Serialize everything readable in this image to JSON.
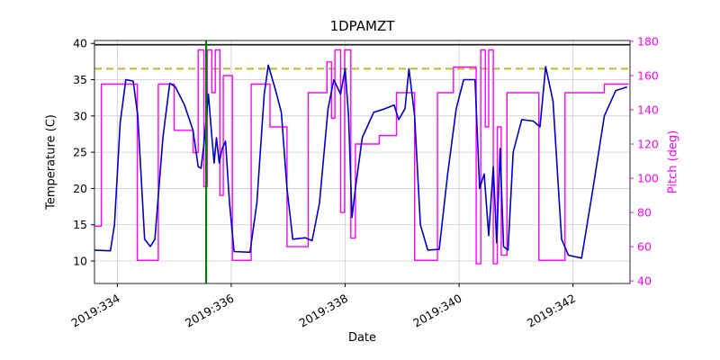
{
  "figure": {
    "title": "1DPAMZT",
    "xlabel": "Date",
    "ylabel_left": "Temperature (C)",
    "ylabel_right": "Pitch (deg)"
  },
  "chart_data": {
    "type": "line",
    "title": "1DPAMZT",
    "xlabel": "Date",
    "grid": true,
    "legend_position": "none",
    "xlim": [
      333.6,
      343.0
    ],
    "x_ticks": [
      {
        "value": 334,
        "label": "2019:334"
      },
      {
        "value": 336,
        "label": "2019:336"
      },
      {
        "value": 338,
        "label": "2019:338"
      },
      {
        "value": 340,
        "label": "2019:340"
      },
      {
        "value": 342,
        "label": "2019:342"
      }
    ],
    "axes": {
      "left": {
        "label": "Temperature (C)",
        "lim": [
          6.9,
          40.4
        ],
        "ticks": [
          10,
          15,
          20,
          25,
          30,
          35,
          40
        ],
        "color": "#000000"
      },
      "right": {
        "label": "Pitch (deg)",
        "lim": [
          38.5,
          180.5
        ],
        "ticks": [
          40,
          60,
          80,
          100,
          120,
          140,
          160,
          180
        ],
        "color": "#ff00ff"
      }
    },
    "series": [
      {
        "name": "temperature",
        "axis": "left",
        "color": "#0000cc",
        "width": 1.6,
        "x": [
          333.6,
          333.88,
          333.95,
          334.05,
          334.15,
          334.28,
          334.36,
          334.48,
          334.58,
          334.66,
          334.8,
          334.92,
          335.02,
          335.18,
          335.33,
          335.42,
          335.47,
          335.52,
          335.6,
          335.65,
          335.7,
          335.74,
          335.79,
          335.84,
          335.9,
          335.97,
          336.05,
          336.33,
          336.45,
          336.58,
          336.65,
          336.78,
          336.88,
          336.98,
          337.08,
          337.3,
          337.42,
          337.55,
          337.7,
          337.8,
          337.92,
          338.0,
          338.06,
          338.12,
          338.18,
          338.3,
          338.5,
          338.7,
          338.86,
          338.94,
          339.05,
          339.12,
          339.22,
          339.32,
          339.45,
          339.65,
          339.8,
          339.95,
          340.08,
          340.28,
          340.36,
          340.44,
          340.52,
          340.6,
          340.66,
          340.72,
          340.78,
          340.86,
          340.95,
          341.1,
          341.3,
          341.42,
          341.52,
          341.65,
          341.8,
          341.92,
          342.15,
          342.35,
          342.55,
          342.75,
          342.95
        ],
        "y": [
          11.5,
          11.4,
          15,
          29,
          35,
          34.8,
          30,
          13,
          12,
          13,
          27,
          34.5,
          34,
          31.5,
          28,
          23,
          22.8,
          26,
          33,
          28,
          23.5,
          27,
          23.5,
          25.5,
          26.5,
          18,
          11.3,
          11.2,
          18,
          33,
          37,
          33.5,
          30.5,
          20,
          13,
          13.2,
          12.8,
          18,
          31,
          35,
          33,
          36.5,
          30,
          16,
          20,
          27,
          30.5,
          31,
          31.5,
          29.5,
          31,
          36.5,
          30,
          15,
          11.5,
          11.6,
          22,
          31,
          35,
          35,
          20,
          22,
          13.5,
          23,
          12.5,
          25.5,
          12,
          11.5,
          25,
          29.5,
          29.3,
          28.5,
          36.8,
          32,
          13,
          10.8,
          10.4,
          20,
          30,
          33.5,
          34
        ]
      },
      {
        "name": "pitch",
        "axis": "right",
        "color": "#ff00ff",
        "width": 1.4,
        "x": [
          333.6,
          333.72,
          333.72,
          334.35,
          334.35,
          334.72,
          334.72,
          335.0,
          335.0,
          335.33,
          335.33,
          335.42,
          335.42,
          335.52,
          335.52,
          335.58,
          335.58,
          335.66,
          335.66,
          335.72,
          335.72,
          335.8,
          335.8,
          335.86,
          335.86,
          336.02,
          336.02,
          336.35,
          336.35,
          336.68,
          336.68,
          336.98,
          336.98,
          337.35,
          337.35,
          337.68,
          337.68,
          337.76,
          337.76,
          337.82,
          337.82,
          337.92,
          337.92,
          337.99,
          337.99,
          338.1,
          338.1,
          338.18,
          338.18,
          338.6,
          338.6,
          338.9,
          338.9,
          339.22,
          339.22,
          339.62,
          339.62,
          339.9,
          339.9,
          340.12,
          340.12,
          340.3,
          340.3,
          340.38,
          340.38,
          340.46,
          340.46,
          340.52,
          340.52,
          340.6,
          340.6,
          340.67,
          340.67,
          340.74,
          340.74,
          340.84,
          340.84,
          341.4,
          341.4,
          341.86,
          341.86,
          342.55,
          342.55,
          342.98
        ],
        "y": [
          72,
          72,
          155,
          155,
          52,
          52,
          155,
          155,
          128,
          128,
          115,
          115,
          175,
          175,
          95,
          95,
          175,
          175,
          150,
          150,
          175,
          175,
          90,
          90,
          160,
          160,
          52,
          52,
          155,
          155,
          130,
          130,
          60,
          60,
          150,
          150,
          168,
          168,
          135,
          135,
          175,
          175,
          80,
          80,
          175,
          175,
          65,
          65,
          120,
          120,
          125,
          125,
          150,
          150,
          52,
          52,
          150,
          150,
          165,
          165,
          165,
          165,
          50,
          50,
          175,
          175,
          130,
          130,
          175,
          175,
          50,
          50,
          130,
          130,
          55,
          55,
          150,
          150,
          52,
          52,
          150,
          150,
          155,
          155
        ]
      }
    ],
    "annotations": [
      {
        "name": "current-time-vline",
        "type": "vline",
        "x": 335.56,
        "color": "#008000",
        "width": 2.2,
        "style": "solid"
      },
      {
        "name": "planning-limit-hline",
        "type": "hline",
        "axis": "left",
        "y": 36.5,
        "color": "#bcbd22",
        "width": 2.0,
        "style": "dashed"
      },
      {
        "name": "upper-limit-hline",
        "type": "hline",
        "axis": "left",
        "y": 39.8,
        "color": "#000000",
        "width": 1.3,
        "style": "solid"
      }
    ],
    "style": {
      "grid_color": "#cccccc",
      "spine_color": "#262626",
      "tick_font_size": 12.5,
      "background": "#ffffff"
    }
  }
}
